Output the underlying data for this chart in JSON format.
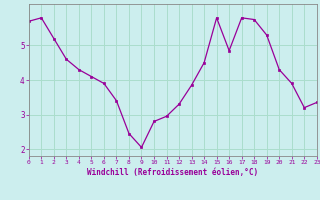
{
  "x": [
    0,
    1,
    2,
    3,
    4,
    5,
    6,
    7,
    8,
    9,
    10,
    11,
    12,
    13,
    14,
    15,
    16,
    17,
    18,
    19,
    20,
    21,
    22,
    23
  ],
  "y": [
    5.7,
    5.8,
    5.2,
    4.6,
    4.3,
    4.1,
    3.9,
    3.4,
    2.45,
    2.05,
    2.8,
    2.95,
    3.3,
    3.85,
    4.5,
    5.8,
    4.85,
    5.8,
    5.75,
    5.3,
    4.3,
    3.9,
    3.2,
    3.35
  ],
  "xlim": [
    0,
    23
  ],
  "ylim": [
    1.8,
    6.2
  ],
  "yticks": [
    2,
    3,
    4,
    5
  ],
  "xticks": [
    0,
    1,
    2,
    3,
    4,
    5,
    6,
    7,
    8,
    9,
    10,
    11,
    12,
    13,
    14,
    15,
    16,
    17,
    18,
    19,
    20,
    21,
    22,
    23
  ],
  "xlabel": "Windchill (Refroidissement éolien,°C)",
  "line_color": "#990099",
  "marker_color": "#990099",
  "bg_color": "#cceeee",
  "grid_color": "#aaddcc",
  "xlabel_color": "#990099",
  "tick_color": "#990099",
  "spine_color": "#888888"
}
